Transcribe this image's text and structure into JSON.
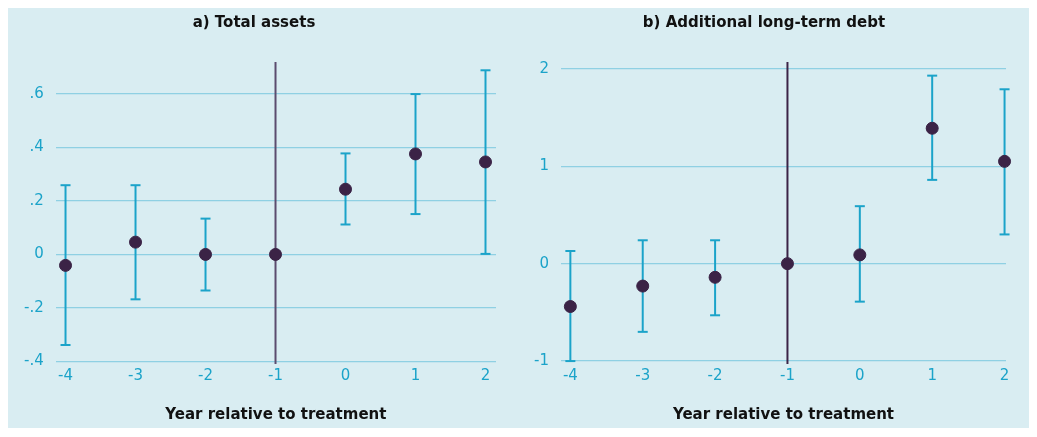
{
  "chart_data": [
    {
      "type": "scatter",
      "title": "a) Total assets",
      "xlabel": "Year relative to treatment",
      "x": [
        -4,
        -3,
        -2,
        -1,
        0,
        1,
        2
      ],
      "series": [
        {
          "color": "#3b2346",
          "values": [
            -0.041,
            0.046,
            0,
            0,
            0.244,
            0.376,
            0.346
          ],
          "errors": [
            [
              -0.339,
              0.259
            ],
            [
              -0.168,
              0.259
            ],
            [
              -0.135,
              0.134
            ],
            null,
            [
              0.112,
              0.378
            ],
            [
              0.151,
              0.6
            ],
            [
              0.002,
              0.689
            ]
          ]
        }
      ],
      "xlim": [
        -4.14,
        2.15
      ],
      "xticks": [
        -4,
        -3,
        -2,
        -1,
        0,
        1,
        2
      ],
      "ylim": [
        -0.41,
        0.72
      ],
      "yticks": [
        {
          "value": -0.4,
          "label": "-.4"
        },
        {
          "value": -0.2,
          "label": "-.2"
        },
        0,
        {
          "value": 0.2,
          "label": ".2"
        },
        {
          "value": 0.4,
          "label": ".4"
        },
        {
          "value": 0.6,
          "label": ".6"
        }
      ],
      "ref_lines": [
        {
          "axis": "x",
          "value": -1,
          "color": "#5b4c6e"
        }
      ],
      "grid": "y",
      "legend": false,
      "marker": "circle"
    },
    {
      "type": "scatter",
      "title": "b) Additional long-term debt",
      "xlabel": "Year relative to treatment",
      "x": [
        -4,
        -3,
        -2,
        -1,
        0,
        1,
        2
      ],
      "series": [
        {
          "color": "#3b2346",
          "values": [
            -0.44,
            -0.23,
            -0.14,
            0,
            0.09,
            1.39,
            1.05
          ],
          "errors": [
            [
              -1.0,
              0.13
            ],
            [
              -0.7,
              0.24
            ],
            [
              -0.53,
              0.24
            ],
            null,
            [
              -0.39,
              0.59
            ],
            [
              0.86,
              1.93
            ],
            [
              0.3,
              1.79
            ]
          ]
        }
      ],
      "xlim": [
        -4.13,
        2.02
      ],
      "xticks": [
        -4,
        -3,
        -2,
        -1,
        0,
        1,
        2
      ],
      "ylim": [
        -1.03,
        2.07
      ],
      "yticks": [
        -1,
        0,
        1,
        2
      ],
      "ref_lines": [
        {
          "axis": "x",
          "value": -1,
          "color": "#3b2346"
        }
      ],
      "grid": "y",
      "legend": false,
      "marker": "circle"
    }
  ]
}
